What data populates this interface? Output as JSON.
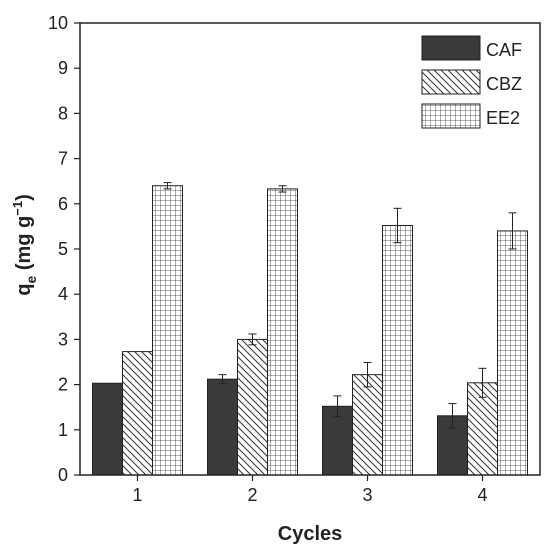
{
  "chart_data": {
    "type": "bar",
    "xlabel": "Cycles",
    "ylabel_main": "q",
    "ylabel_sub": "e",
    "ylabel_unit": " (mg g",
    "ylabel_sup": "−1",
    "ylabel_close": ")",
    "categories": [
      "1",
      "2",
      "3",
      "4"
    ],
    "ylim": [
      0,
      10
    ],
    "yticks": [
      "0",
      "1",
      "2",
      "3",
      "4",
      "5",
      "6",
      "7",
      "8",
      "9",
      "10"
    ],
    "series": [
      {
        "name": "CAF",
        "fill": "solid",
        "color": "#3a3a3a",
        "values": [
          2.03,
          2.12,
          1.52,
          1.31
        ],
        "errors": [
          0.0,
          0.1,
          0.23,
          0.27
        ]
      },
      {
        "name": "CBZ",
        "fill": "diagonal",
        "color": "#333333",
        "values": [
          2.73,
          3.0,
          2.22,
          2.04
        ],
        "errors": [
          0.0,
          0.12,
          0.27,
          0.32
        ]
      },
      {
        "name": "EE2",
        "fill": "grid",
        "color": "#333333",
        "values": [
          6.4,
          6.33,
          5.52,
          5.4
        ],
        "errors": [
          0.07,
          0.07,
          0.38,
          0.4
        ]
      }
    ],
    "legend_position": "top-right",
    "grid": false
  }
}
